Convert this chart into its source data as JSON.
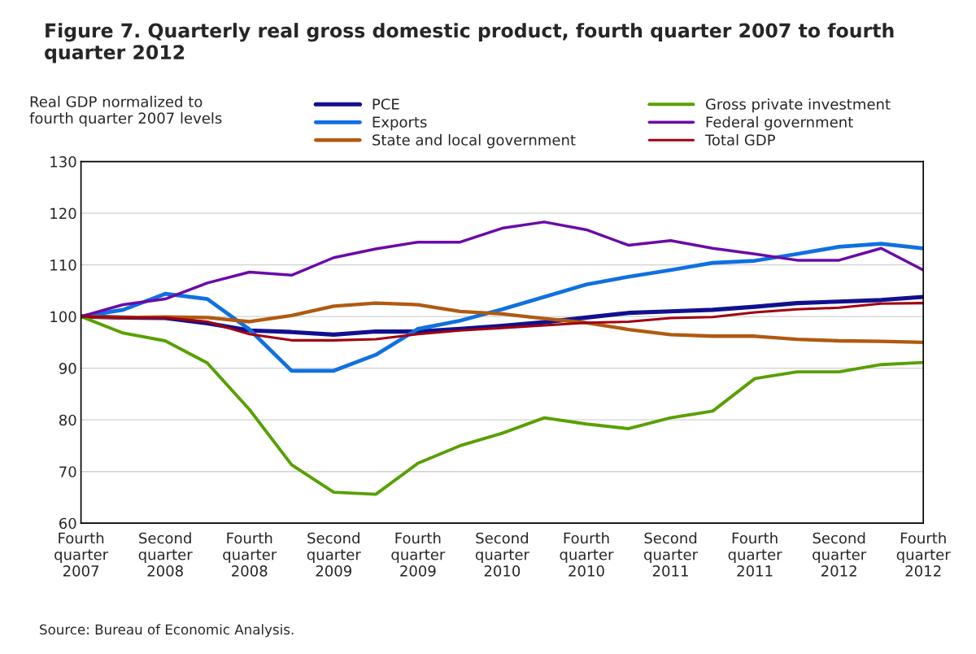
{
  "chart_data": {
    "type": "line",
    "title": "Figure 7. Quarterly real gross domestic product, fourth quarter 2007 to fourth quarter 2012",
    "ylabel": "Real GDP normalized to\nfourth quarter 2007 levels",
    "categories": [
      "Fourth\nquarter\n2007",
      null,
      "Second\nquarter\n2008",
      null,
      "Fourth\nquarter\n2008",
      null,
      "Second\nquarter\n2009",
      null,
      "Fourth\nquarter\n2009",
      null,
      "Second\nquarter\n2010",
      null,
      "Fourth\nquarter\n2010",
      null,
      "Second\nquarter\n2011",
      null,
      "Fourth\nquarter\n2011",
      null,
      "Second\nquarter\n2012",
      null,
      "Fourth\nquarter\n2012"
    ],
    "series": [
      {
        "name": "PCE",
        "color": "#10108f",
        "values": [
          100,
          99.8,
          99.7,
          98.7,
          97.3,
          97,
          96.5,
          97.1,
          97.1,
          97.6,
          98.2,
          98.9,
          99.8,
          100.7,
          101,
          101.3,
          101.9,
          102.6,
          102.9,
          103.2,
          103.8
        ]
      },
      {
        "name": "Exports",
        "color": "#1070e0",
        "values": [
          100,
          101.3,
          104.4,
          103.4,
          97.5,
          89.5,
          89.5,
          92.6,
          97.6,
          99.2,
          101.4,
          103.8,
          106.2,
          107.7,
          109,
          110.4,
          110.8,
          112.1,
          113.5,
          114.1,
          113.2
        ]
      },
      {
        "name": "State and local government",
        "color": "#b05a10",
        "values": [
          100,
          99.8,
          99.9,
          99.8,
          99,
          100.2,
          102,
          102.6,
          102.3,
          101,
          100.5,
          99.6,
          98.8,
          97.5,
          96.5,
          96.2,
          96.2,
          95.6,
          95.3,
          95.2,
          95
        ]
      },
      {
        "name": "Gross private investment",
        "color": "#58a000",
        "values": [
          100,
          96.8,
          95.3,
          91,
          82,
          71.3,
          66,
          65.6,
          71.6,
          75,
          77.4,
          80.4,
          79.2,
          78.3,
          80.4,
          81.7,
          88,
          89.3,
          89.3,
          90.7,
          91.1
        ]
      },
      {
        "name": "Federal government",
        "color": "#6a0aa8",
        "values": [
          100,
          102.3,
          103.4,
          106.5,
          108.6,
          108,
          111.4,
          113.1,
          114.4,
          114.4,
          117.1,
          118.3,
          116.8,
          113.8,
          114.7,
          113.2,
          112.1,
          110.9,
          110.9,
          113.2,
          109
        ]
      },
      {
        "name": "Total GDP",
        "color": "#a00010",
        "values": [
          100,
          99.8,
          99.8,
          99,
          96.6,
          95.4,
          95.4,
          95.6,
          96.6,
          97.3,
          97.8,
          98.3,
          98.8,
          99,
          99.7,
          99.9,
          100.8,
          101.4,
          101.7,
          102.5,
          102.6
        ]
      }
    ],
    "ylim": [
      60,
      130
    ],
    "yticks": [
      60,
      70,
      80,
      90,
      100,
      110,
      120,
      130
    ],
    "grid": "y",
    "legend": "top",
    "marker": "none",
    "line_style": "solid",
    "annotations": [
      "Source: Bureau of Economic Analysis."
    ]
  }
}
